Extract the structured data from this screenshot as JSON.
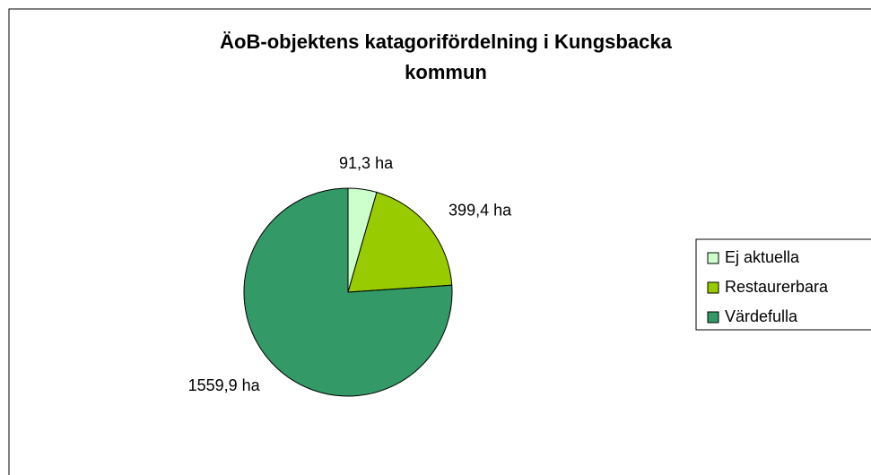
{
  "chart_data": {
    "type": "pie",
    "title": [
      "ÄoB-objektens katagorifördelning i Kungsbacka",
      "kommun"
    ],
    "categories": [
      "Ej aktuella",
      "Restaurerbara",
      "Värdefulla"
    ],
    "values": [
      91.3,
      399.4,
      1559.9
    ],
    "value_labels": [
      "91,3 ha",
      "399,4 ha",
      "1559,9 ha"
    ],
    "colors": [
      "#ccffcc",
      "#99cc00",
      "#339966"
    ],
    "legend": "right"
  }
}
